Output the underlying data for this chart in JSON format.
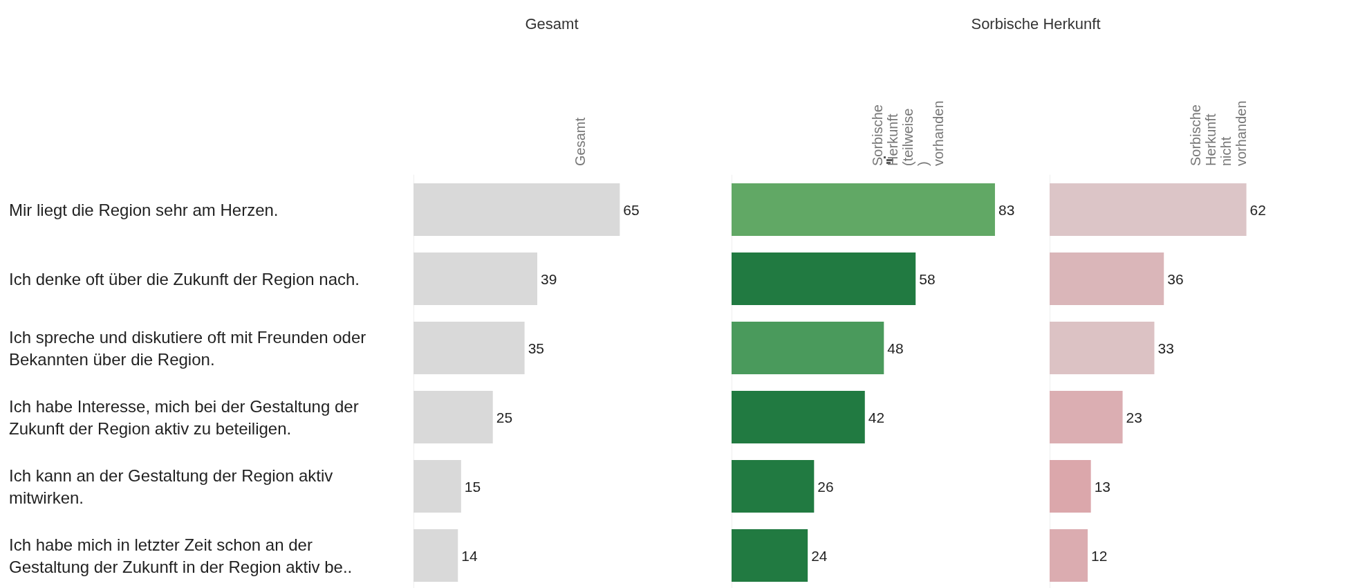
{
  "chart_data": [
    {
      "type": "bar",
      "orientation": "horizontal",
      "title": "Gesamt",
      "subtitle": "Gesamt",
      "tick_labels": "y",
      "data_labels": true,
      "categories": [
        "Mir liegt die Region sehr am Herzen.",
        "Ich denke oft über die Zukunft der Region nach.",
        "Ich spreche und diskutiere oft mit Freunden oder Bekannten über die Region.",
        "Ich habe Interesse, mich bei der Gestaltung der Zukunft der Region aktiv zu beteiligen.",
        "Ich kann an der Gestaltung der Region aktiv mitwirken.",
        "Ich habe mich in letzter Zeit schon an der Gestaltung der Zukunft in der Region aktiv be.."
      ],
      "values": [
        65,
        39,
        35,
        25,
        15,
        14
      ],
      "colors": [
        "#d9d9d9",
        "#d9d9d9",
        "#d9d9d9",
        "#d9d9d9",
        "#d9d9d9",
        "#d9d9d9"
      ]
    },
    {
      "type": "bar",
      "orientation": "horizontal",
      "title": "Sorbische Herkunft",
      "subtitle": "Sorbische Herkunft (teilweise) vorhanden",
      "tick_labels": false,
      "data_labels": true,
      "values": [
        83,
        58,
        48,
        42,
        26,
        24
      ],
      "colors": [
        "#61a865",
        "#217a41",
        "#4a9a5c",
        "#217a41",
        "#217a41",
        "#217a41"
      ]
    },
    {
      "type": "bar",
      "orientation": "horizontal",
      "subtitle": "Sorbische Herkunft nicht vorhanden",
      "tick_labels": false,
      "data_labels": true,
      "values": [
        62,
        36,
        33,
        23,
        13,
        12
      ],
      "colors": [
        "#dcc5c7",
        "#dab6b9",
        "#dcc2c4",
        "#dbaeb2",
        "#dba7ab",
        "#dbacb0"
      ]
    }
  ]
}
